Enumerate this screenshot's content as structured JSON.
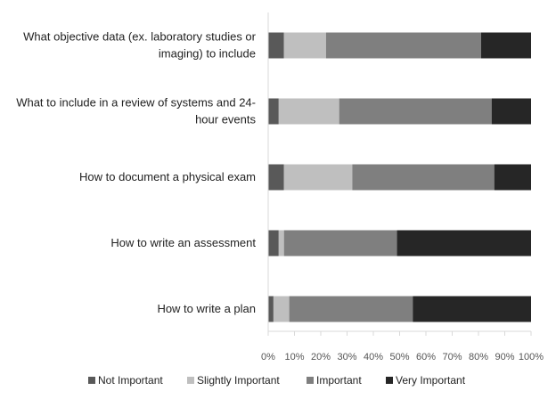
{
  "chart_data": {
    "type": "bar",
    "orientation": "horizontal",
    "stacked": true,
    "percent": true,
    "categories": [
      [
        "What objective data (ex. laboratory studies or",
        "imaging) to include"
      ],
      [
        "What to include in a review of systems and 24-",
        "hour events"
      ],
      [
        "How to document a physical exam"
      ],
      [
        "How to write an assessment"
      ],
      [
        "How to write a plan"
      ]
    ],
    "series": [
      {
        "name": "Not Important",
        "color": "#595959",
        "values": [
          6,
          4,
          6,
          4,
          2
        ]
      },
      {
        "name": "Slightly Important",
        "color": "#bfbfbf",
        "values": [
          16,
          23,
          26,
          2,
          6
        ]
      },
      {
        "name": "Important",
        "color": "#7f7f7f",
        "values": [
          59,
          58,
          54,
          43,
          47
        ]
      },
      {
        "name": "Very Important",
        "color": "#262626",
        "values": [
          19,
          15,
          14,
          51,
          45
        ]
      }
    ],
    "xlim": [
      0,
      100
    ],
    "xticks": [
      "0%",
      "10%",
      "20%",
      "30%",
      "40%",
      "50%",
      "60%",
      "70%",
      "80%",
      "90%",
      "100%"
    ],
    "title": "",
    "xlabel": "",
    "ylabel": "",
    "grid": false,
    "legend": "bottom"
  }
}
